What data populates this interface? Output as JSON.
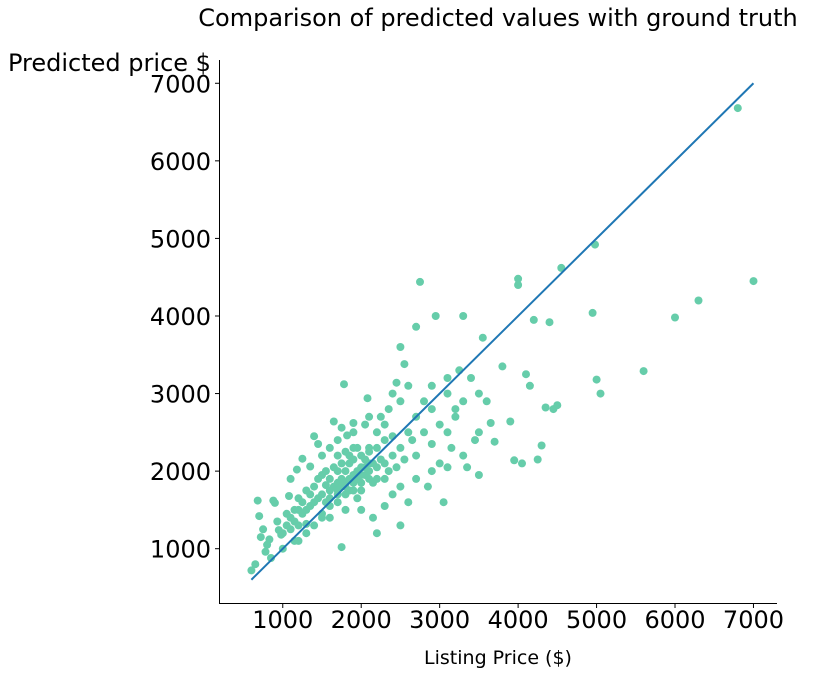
{
  "chart_data": {
    "type": "scatter",
    "title": "Comparison of predicted values with ground truth",
    "xlabel": "Listing Price ($)",
    "ylabel": "Predicted price $",
    "xlim": [
      200,
      7300
    ],
    "ylim": [
      300,
      7300
    ],
    "xticks": [
      1000,
      2000,
      3000,
      4000,
      5000,
      6000,
      7000
    ],
    "yticks": [
      1000,
      2000,
      3000,
      4000,
      5000,
      6000,
      7000
    ],
    "grid": false,
    "point_color": "#66cdaa",
    "line_color": "#1f77b4",
    "reference_line": {
      "x": [
        600,
        7000
      ],
      "y": [
        600,
        7000
      ]
    },
    "points": [
      [
        600,
        720
      ],
      [
        650,
        800
      ],
      [
        680,
        1620
      ],
      [
        700,
        1420
      ],
      [
        720,
        1150
      ],
      [
        750,
        1250
      ],
      [
        780,
        960
      ],
      [
        800,
        1050
      ],
      [
        830,
        1120
      ],
      [
        850,
        880
      ],
      [
        880,
        1620
      ],
      [
        900,
        1590
      ],
      [
        930,
        1350
      ],
      [
        950,
        1240
      ],
      [
        980,
        1180
      ],
      [
        1000,
        1000
      ],
      [
        1050,
        1450
      ],
      [
        1080,
        1680
      ],
      [
        1100,
        1900
      ],
      [
        1150,
        1100
      ],
      [
        1180,
        2020
      ],
      [
        1200,
        1500
      ],
      [
        1250,
        2160
      ],
      [
        1300,
        1320
      ],
      [
        1350,
        2060
      ],
      [
        1400,
        2450
      ],
      [
        1450,
        2350
      ],
      [
        1500,
        1400
      ],
      [
        1550,
        1820
      ],
      [
        1600,
        2300
      ],
      [
        1650,
        2640
      ],
      [
        1700,
        2000
      ],
      [
        1750,
        2560
      ],
      [
        1750,
        1020
      ],
      [
        1780,
        3120
      ],
      [
        1820,
        2460
      ],
      [
        1850,
        2200
      ],
      [
        1900,
        2620
      ],
      [
        1950,
        1650
      ],
      [
        2000,
        1750
      ],
      [
        2050,
        2600
      ],
      [
        2080,
        2940
      ],
      [
        2100,
        2300
      ],
      [
        2150,
        1400
      ],
      [
        2200,
        1200
      ],
      [
        2250,
        2700
      ],
      [
        2300,
        1900
      ],
      [
        2350,
        2800
      ],
      [
        2400,
        3000
      ],
      [
        2450,
        3140
      ],
      [
        2500,
        1300
      ],
      [
        2500,
        3600
      ],
      [
        2550,
        3380
      ],
      [
        2600,
        3100
      ],
      [
        2650,
        2400
      ],
      [
        2700,
        3860
      ],
      [
        2750,
        4440
      ],
      [
        2800,
        2900
      ],
      [
        2850,
        1800
      ],
      [
        2900,
        3100
      ],
      [
        2950,
        4000
      ],
      [
        3000,
        2100
      ],
      [
        3050,
        1600
      ],
      [
        3100,
        3200
      ],
      [
        3150,
        2300
      ],
      [
        3200,
        2700
      ],
      [
        3250,
        3300
      ],
      [
        3300,
        4000
      ],
      [
        3350,
        2050
      ],
      [
        3400,
        3200
      ],
      [
        3450,
        2400
      ],
      [
        3500,
        1950
      ],
      [
        3550,
        3720
      ],
      [
        3600,
        2900
      ],
      [
        3650,
        2620
      ],
      [
        3700,
        2380
      ],
      [
        3800,
        3350
      ],
      [
        3900,
        2640
      ],
      [
        3950,
        2140
      ],
      [
        4000,
        4480
      ],
      [
        4000,
        4400
      ],
      [
        4050,
        2100
      ],
      [
        4100,
        3250
      ],
      [
        4150,
        3100
      ],
      [
        4200,
        3950
      ],
      [
        4250,
        2150
      ],
      [
        4300,
        2330
      ],
      [
        4350,
        2820
      ],
      [
        4400,
        3920
      ],
      [
        4450,
        2800
      ],
      [
        4500,
        2850
      ],
      [
        4550,
        4620
      ],
      [
        4950,
        4040
      ],
      [
        4980,
        4920
      ],
      [
        5000,
        3180
      ],
      [
        5050,
        3000
      ],
      [
        5600,
        3290
      ],
      [
        6000,
        3980
      ],
      [
        6300,
        4200
      ],
      [
        6800,
        6680
      ],
      [
        7000,
        4450
      ],
      [
        1000,
        1200
      ],
      [
        1050,
        1300
      ],
      [
        1100,
        1250
      ],
      [
        1100,
        1400
      ],
      [
        1150,
        1350
      ],
      [
        1150,
        1500
      ],
      [
        1200,
        1300
      ],
      [
        1200,
        1650
      ],
      [
        1250,
        1450
      ],
      [
        1250,
        1600
      ],
      [
        1300,
        1500
      ],
      [
        1300,
        1750
      ],
      [
        1350,
        1550
      ],
      [
        1350,
        1700
      ],
      [
        1400,
        1600
      ],
      [
        1400,
        1800
      ],
      [
        1450,
        1650
      ],
      [
        1450,
        1900
      ],
      [
        1500,
        1700
      ],
      [
        1500,
        1950
      ],
      [
        1550,
        1600
      ],
      [
        1550,
        2000
      ],
      [
        1600,
        1750
      ],
      [
        1600,
        1900
      ],
      [
        1650,
        1800
      ],
      [
        1650,
        2050
      ],
      [
        1700,
        1700
      ],
      [
        1700,
        1850
      ],
      [
        1700,
        2200
      ],
      [
        1750,
        1900
      ],
      [
        1750,
        2100
      ],
      [
        1800,
        1800
      ],
      [
        1800,
        2000
      ],
      [
        1800,
        2250
      ],
      [
        1850,
        1900
      ],
      [
        1850,
        2100
      ],
      [
        1900,
        1950
      ],
      [
        1900,
        2150
      ],
      [
        1950,
        2000
      ],
      [
        1950,
        2300
      ],
      [
        2000,
        2050
      ],
      [
        2000,
        2200
      ],
      [
        2050,
        1950
      ],
      [
        2050,
        2150
      ],
      [
        2100,
        2000
      ],
      [
        2100,
        2250
      ],
      [
        2150,
        2100
      ],
      [
        2150,
        1850
      ],
      [
        2200,
        2050
      ],
      [
        2200,
        2300
      ],
      [
        2250,
        2150
      ],
      [
        2300,
        2100
      ],
      [
        2300,
        2400
      ],
      [
        2350,
        2000
      ],
      [
        2400,
        2200
      ],
      [
        2450,
        2050
      ],
      [
        2500,
        2300
      ],
      [
        2550,
        2150
      ],
      [
        2600,
        2500
      ],
      [
        2700,
        2200
      ],
      [
        2800,
        2500
      ],
      [
        2900,
        2350
      ],
      [
        3000,
        2600
      ],
      [
        3100,
        2500
      ],
      [
        3200,
        2800
      ],
      [
        1400,
        1300
      ],
      [
        1500,
        1450
      ],
      [
        1600,
        1550
      ],
      [
        1700,
        1600
      ],
      [
        1800,
        1700
      ],
      [
        1900,
        1750
      ],
      [
        2000,
        1850
      ],
      [
        2100,
        1900
      ],
      [
        2200,
        1900
      ],
      [
        2400,
        1700
      ],
      [
        2600,
        1600
      ],
      [
        1300,
        1200
      ],
      [
        1200,
        1100
      ],
      [
        1600,
        1400
      ],
      [
        1800,
        1500
      ],
      [
        2000,
        1500
      ],
      [
        2300,
        1550
      ],
      [
        2500,
        1800
      ],
      [
        2700,
        1900
      ],
      [
        2900,
        2000
      ],
      [
        3100,
        2050
      ],
      [
        3300,
        2200
      ],
      [
        3500,
        2500
      ],
      [
        1900,
        2500
      ],
      [
        2100,
        2700
      ],
      [
        2300,
        2600
      ],
      [
        2500,
        2900
      ],
      [
        2700,
        2700
      ],
      [
        2900,
        2800
      ],
      [
        3100,
        3000
      ],
      [
        3300,
        2900
      ],
      [
        3500,
        3000
      ],
      [
        1500,
        2200
      ],
      [
        1700,
        2400
      ],
      [
        1900,
        2300
      ],
      [
        2200,
        2500
      ],
      [
        2400,
        2450
      ],
      [
        1600,
        1650
      ],
      [
        1700,
        1750
      ],
      [
        1750,
        1800
      ],
      [
        1800,
        1850
      ],
      [
        1850,
        1750
      ],
      [
        1900,
        1850
      ],
      [
        1950,
        1900
      ],
      [
        2000,
        1950
      ],
      [
        2050,
        2050
      ],
      [
        2100,
        2100
      ]
    ]
  }
}
